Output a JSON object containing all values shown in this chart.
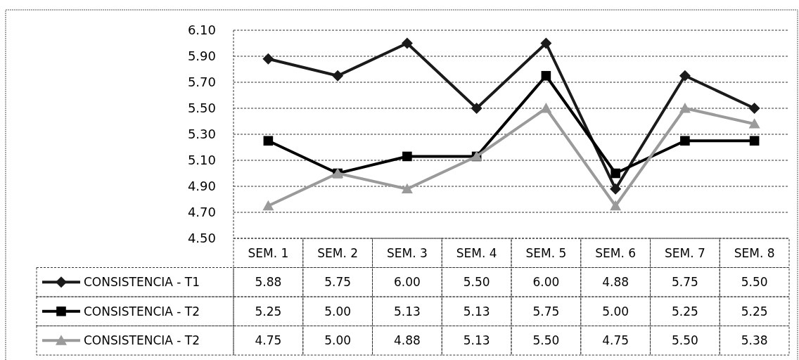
{
  "chart_data": {
    "type": "line",
    "categories": [
      "SEM. 1",
      "SEM. 2",
      "SEM. 3",
      "SEM. 4",
      "SEM. 5",
      "SEM. 6",
      "SEM. 7",
      "SEM. 8"
    ],
    "series": [
      {
        "name": "CONSISTENCIA - T1",
        "color": "#1a1a1a",
        "marker": "diamond",
        "values": [
          5.88,
          5.75,
          6.0,
          5.5,
          6.0,
          4.88,
          5.75,
          5.5
        ],
        "value_labels": [
          "5.88",
          "5.75",
          "6.00",
          "5.50",
          "6.00",
          "4.88",
          "5.75",
          "5.50"
        ]
      },
      {
        "name": "CONSISTENCIA - T2",
        "color": "#000000",
        "marker": "square",
        "values": [
          5.25,
          5.0,
          5.13,
          5.13,
          5.75,
          5.0,
          5.25,
          5.25
        ],
        "value_labels": [
          "5.25",
          "5.00",
          "5.13",
          "5.13",
          "5.75",
          "5.00",
          "5.25",
          "5.25"
        ]
      },
      {
        "name": "CONSISTENCIA - T2",
        "color": "#9a9a9a",
        "marker": "triangle",
        "values": [
          4.75,
          5.0,
          4.88,
          5.13,
          5.5,
          4.75,
          5.5,
          5.38
        ],
        "value_labels": [
          "4.75",
          "5.00",
          "4.88",
          "5.13",
          "5.50",
          "4.75",
          "5.50",
          "5.38"
        ]
      }
    ],
    "ylim": [
      4.5,
      6.1
    ],
    "yticks": [
      {
        "value": 4.5,
        "label": "4.50"
      },
      {
        "value": 4.7,
        "label": "4.70"
      },
      {
        "value": 4.9,
        "label": "4.90"
      },
      {
        "value": 5.1,
        "label": "5.10"
      },
      {
        "value": 5.3,
        "label": "5.30"
      },
      {
        "value": 5.5,
        "label": "5.50"
      },
      {
        "value": 5.7,
        "label": "5.70"
      },
      {
        "value": 5.9,
        "label": "5.90"
      },
      {
        "value": 6.1,
        "label": "6.10"
      }
    ],
    "grid": "y",
    "legend": "bottom",
    "line_style": "solid"
  }
}
